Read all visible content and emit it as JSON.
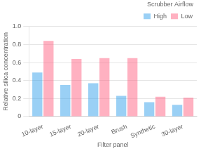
{
  "chart_data": {
    "type": "bar",
    "categories": [
      "10-layer",
      "15-layer",
      "20-layer",
      "Brush",
      "Synthetic",
      "30-layer"
    ],
    "series": [
      {
        "name": "High",
        "values": [
          0.49,
          0.35,
          0.37,
          0.23,
          0.16,
          0.13
        ]
      },
      {
        "name": "Low",
        "values": [
          0.84,
          0.64,
          0.65,
          0.65,
          0.22,
          0.21
        ]
      }
    ],
    "xlabel": "Filter panel",
    "ylabel": "Relative silica concentration",
    "legend_title": "Scrubber Airflow",
    "legend": "upper right",
    "ylim": [
      0,
      1.0
    ],
    "yticks": [
      0,
      0.2,
      0.4,
      0.6,
      0.8,
      {
        "value": 1.0,
        "label": "1.0"
      }
    ],
    "grid": true
  }
}
